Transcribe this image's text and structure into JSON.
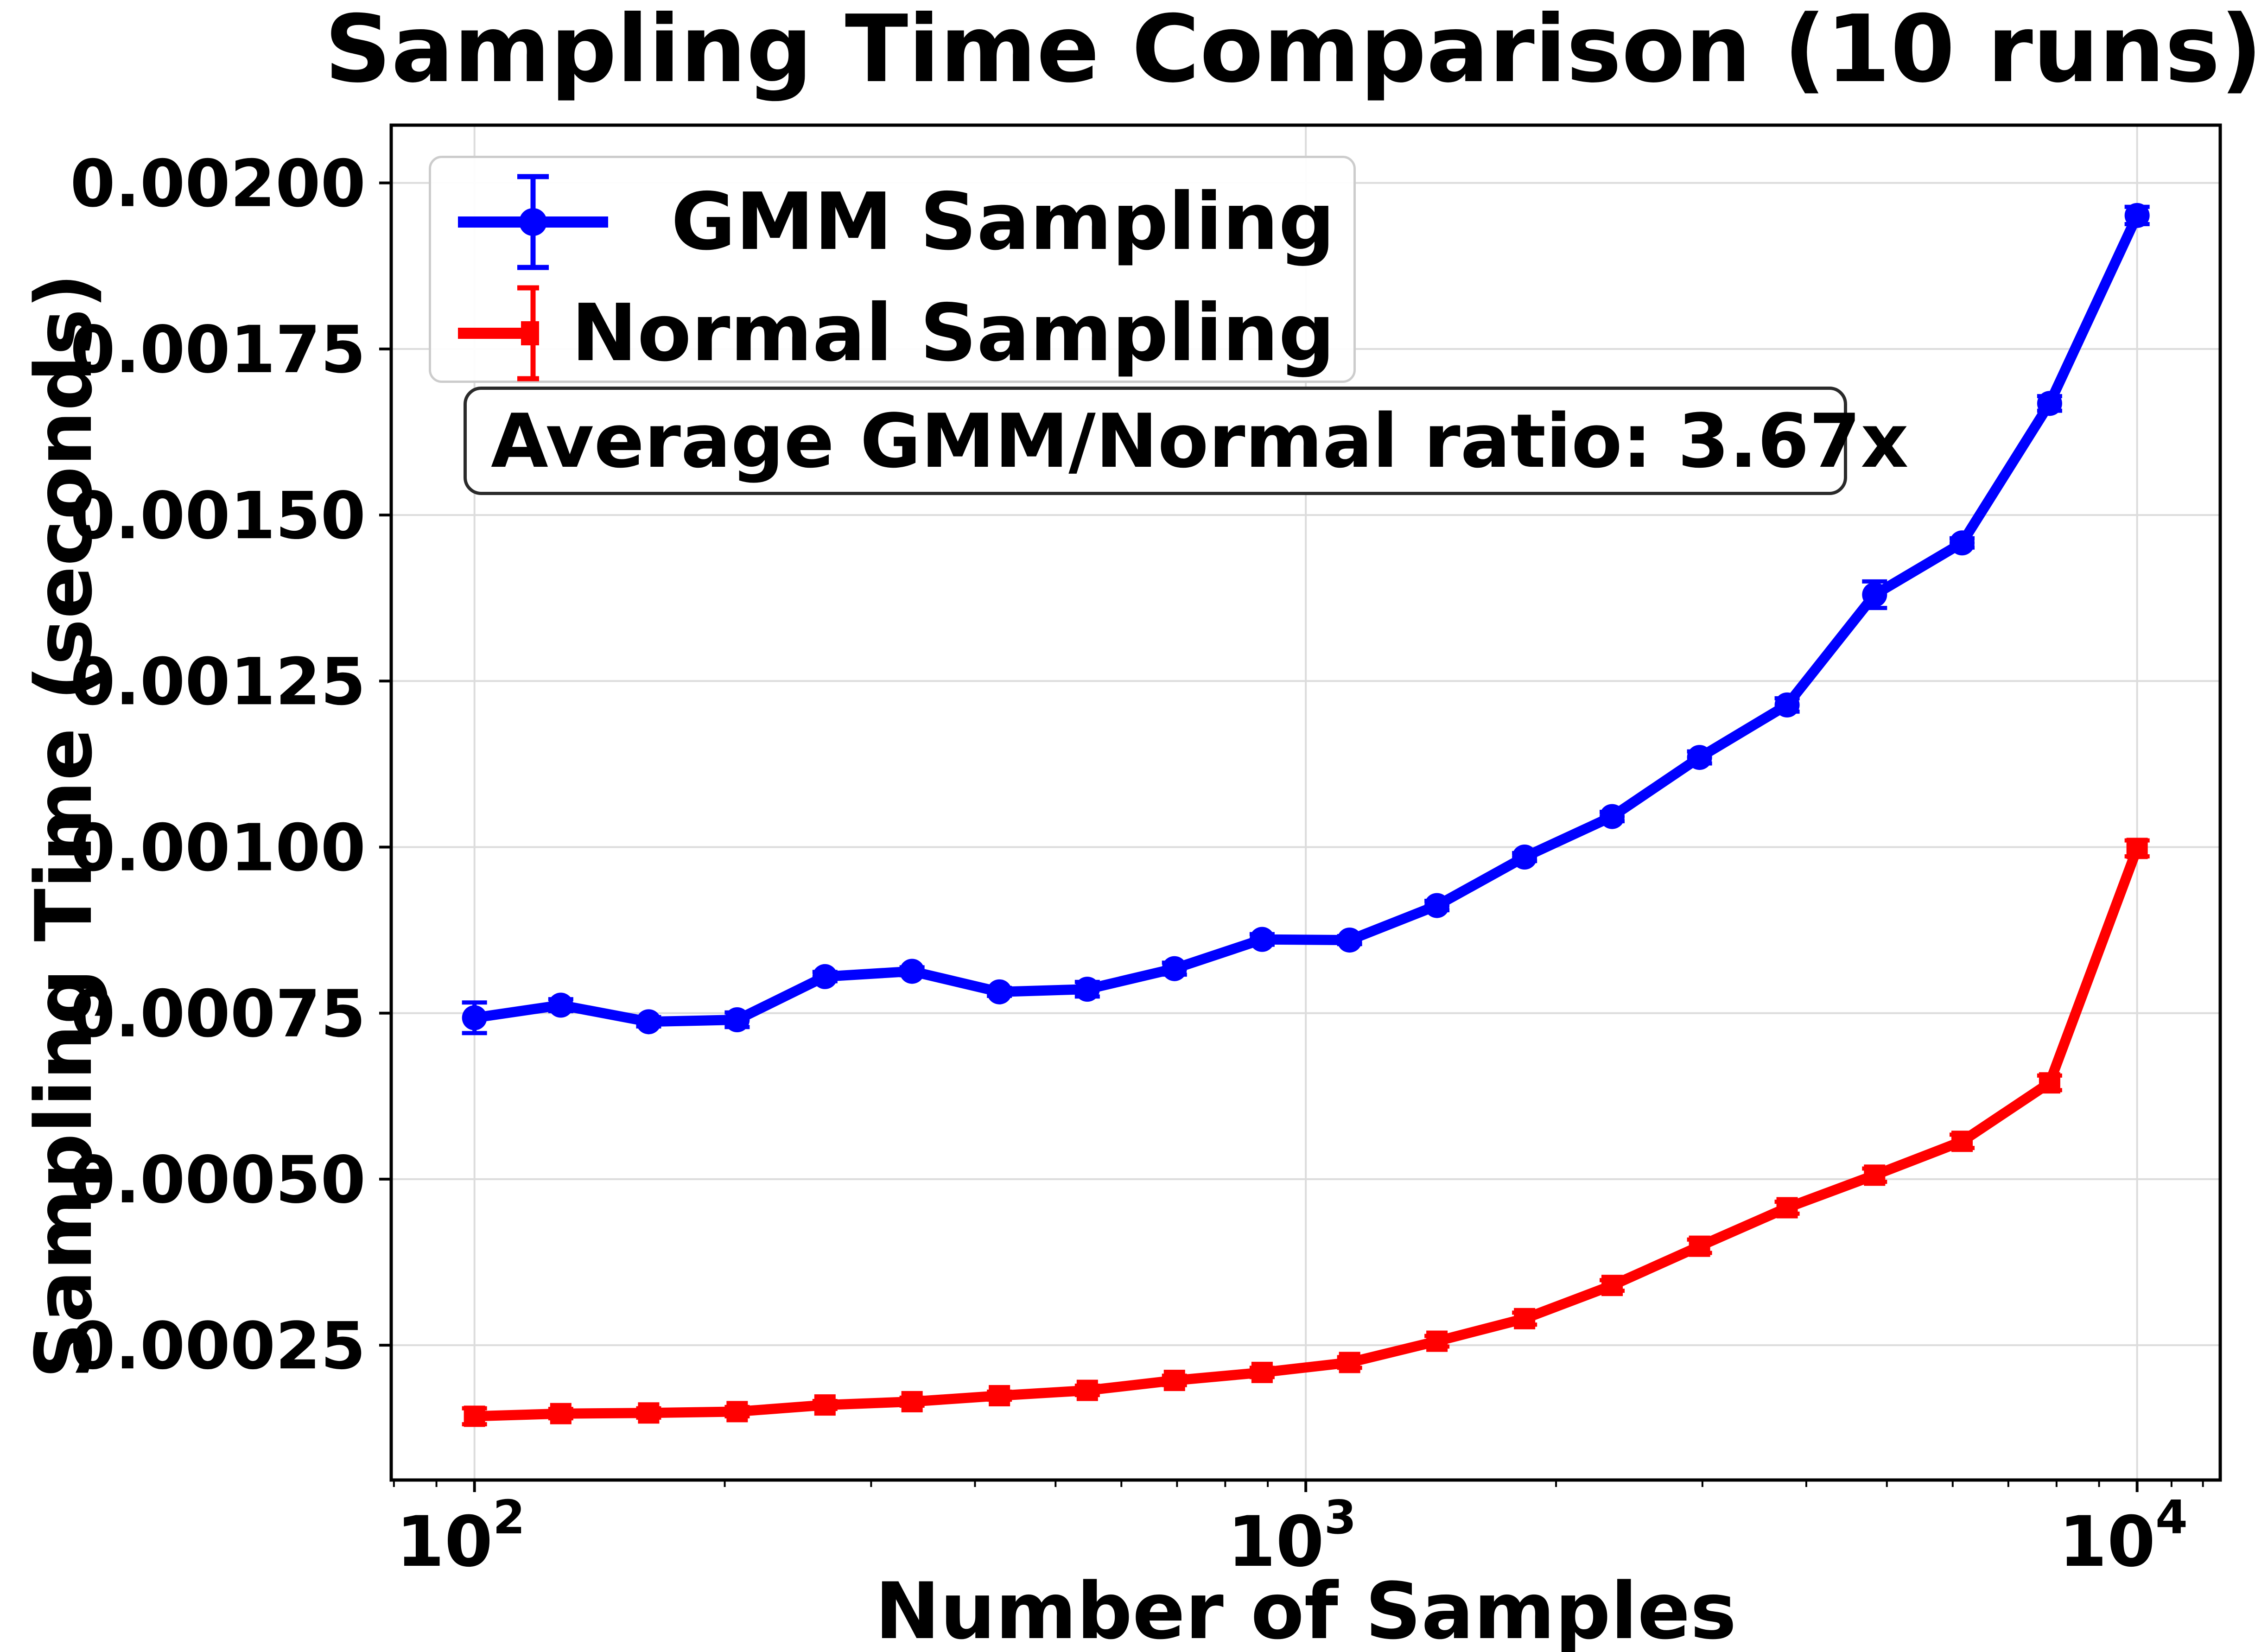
{
  "title": "Sampling Time Comparison (10 runs)",
  "annotation": {
    "text": "Average GMM/Normal ratio: 3.67x"
  },
  "legend": {
    "items": [
      {
        "label": "GMM Sampling"
      },
      {
        "label": "Normal Sampling"
      }
    ]
  },
  "chart_data": {
    "type": "line",
    "title": "Sampling Time Comparison (10 runs)",
    "xlabel": "Number of Samples",
    "ylabel": "Sampling Time (seconds)",
    "x_scale": "log",
    "grid": true,
    "legend_position": "upper left",
    "xlim": [
      79.4,
      12589
    ],
    "ylim": [
      4.7e-05,
      0.002087
    ],
    "x": [
      100,
      127,
      162,
      207,
      264,
      336,
      428,
      546,
      695,
      886,
      1129,
      1438,
      1833,
      2336,
      2976,
      3793,
      4833,
      6158,
      7848,
      10000
    ],
    "series": [
      {
        "name": "GMM Sampling",
        "color": "#0000ff",
        "marker": "circle",
        "values": [
          0.000743,
          0.000762,
          0.000737,
          0.00074,
          0.000805,
          0.000813,
          0.000782,
          0.000786,
          0.000817,
          0.000861,
          0.00086,
          0.000912,
          0.000985,
          0.001046,
          0.001135,
          0.001214,
          0.00138,
          0.001458,
          0.001668,
          0.001951
        ],
        "yerr": [
          2.3e-05,
          9e-06,
          7e-06,
          1.1e-05,
          7e-06,
          6e-06,
          6e-06,
          1.1e-05,
          9e-06,
          8e-06,
          6e-06,
          7e-06,
          6e-06,
          7e-06,
          9e-06,
          1e-05,
          2e-05,
          7e-06,
          1.1e-05,
          1.3e-05
        ]
      },
      {
        "name": "Normal Sampling",
        "color": "#ff0000",
        "marker": "square",
        "values": [
          0.000143,
          0.000147,
          0.000148,
          0.00015,
          0.00016,
          0.000165,
          0.000174,
          0.000182,
          0.000197,
          0.000209,
          0.000224,
          0.000256,
          0.00029,
          0.00034,
          0.000399,
          0.000457,
          0.000506,
          0.000557,
          0.000645,
          0.000998
        ],
        "yerr": [
          1.2e-05,
          7e-06,
          7e-06,
          7e-06,
          6e-06,
          6e-06,
          6e-06,
          7e-06,
          7e-06,
          7e-06,
          8e-06,
          8e-06,
          9e-06,
          8e-06,
          1e-05,
          9e-06,
          1e-05,
          1e-05,
          1.1e-05,
          1.2e-05
        ]
      }
    ],
    "xticks": [
      {
        "value": 100,
        "base": "10",
        "exp": "2"
      },
      {
        "value": 1000,
        "base": "10",
        "exp": "3"
      },
      {
        "value": 10000,
        "base": "10",
        "exp": "4"
      }
    ],
    "x_minor_ticks": [
      80,
      90,
      200,
      300,
      400,
      500,
      600,
      700,
      800,
      900,
      2000,
      3000,
      4000,
      5000,
      6000,
      7000,
      8000,
      9000,
      11000,
      12000
    ],
    "yticks": [
      {
        "value": 0.00025,
        "label": "0.00025"
      },
      {
        "value": 0.0005,
        "label": "0.00050"
      },
      {
        "value": 0.00075,
        "label": "0.00075"
      },
      {
        "value": 0.001,
        "label": "0.00100"
      },
      {
        "value": 0.00125,
        "label": "0.00125"
      },
      {
        "value": 0.0015,
        "label": "0.00150"
      },
      {
        "value": 0.00175,
        "label": "0.00175"
      },
      {
        "value": 0.002,
        "label": "0.00200"
      }
    ],
    "colors": {
      "gmm": "#0000ff",
      "normal": "#ff0000",
      "grid": "#dcdcdc",
      "spine": "#000000",
      "legend_border": "#cccccc",
      "annotation_border": "#2a2a2a",
      "background": "#ffffff",
      "text": "#000000"
    }
  }
}
